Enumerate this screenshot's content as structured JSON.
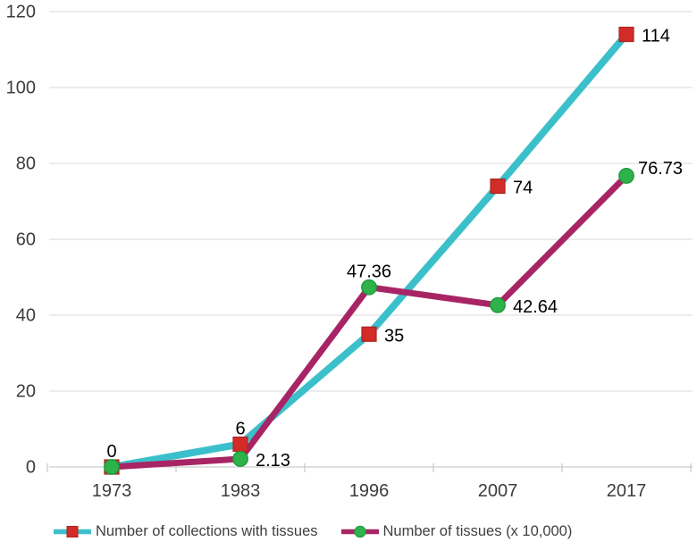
{
  "chart_data": {
    "type": "line",
    "categories": [
      "1973",
      "1983",
      "1996",
      "2007",
      "2017"
    ],
    "series": [
      {
        "name": "Number of collections with tissues",
        "values": [
          0,
          6,
          35,
          74,
          114
        ],
        "labels": [
          "0",
          "6",
          "35",
          "74",
          "114"
        ],
        "label_pos": [
          "above",
          "above",
          "right",
          "right",
          "right"
        ],
        "line_color": "#3BC0CB",
        "line_width": 8,
        "marker": "square",
        "marker_fill": "#D22B28",
        "marker_border": "#A9261F"
      },
      {
        "name": "Number of tissues (x 10,000)",
        "values": [
          0,
          2.13,
          47.36,
          42.64,
          76.73
        ],
        "labels": [
          "",
          "2.13",
          "47.36",
          "42.64",
          "76.73"
        ],
        "label_pos": [
          "none",
          "right",
          "above",
          "right",
          "above-right"
        ],
        "line_color": "#A82565",
        "line_width": 7,
        "marker": "circle",
        "marker_fill": "#2DB34A",
        "marker_border": "#1D9A3C"
      }
    ],
    "title": "",
    "xlabel": "",
    "ylabel": "",
    "ylim": [
      0,
      120
    ],
    "ytick_step": 20,
    "yticks": [
      0,
      20,
      40,
      60,
      80,
      100,
      120
    ],
    "grid": true,
    "legend_position": "bottom"
  },
  "style": {
    "grid_color": "#D9D9D9",
    "axis_color": "#BFBFBF",
    "tick_label_color": "#3C3C3C",
    "data_label_color": "#000000",
    "legend_text_color": "#404040",
    "background": "#ffffff"
  }
}
